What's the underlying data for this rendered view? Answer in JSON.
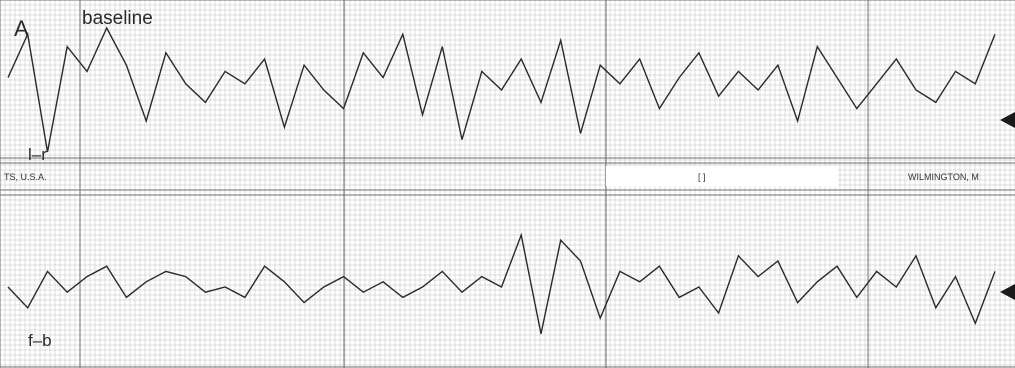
{
  "chart_data": {
    "type": "line",
    "panel_label": "A",
    "title": "baseline",
    "band_texts": {
      "left": "TS, U.S.A.",
      "center": "[ ]",
      "right": "WILMINGTON, M"
    },
    "series": [
      {
        "name": "l–r",
        "x": [
          0,
          2,
          4,
          6,
          8,
          10,
          12,
          14,
          16,
          18,
          20,
          22,
          24,
          26,
          28,
          30,
          32,
          34,
          36,
          38,
          40,
          42,
          44,
          46,
          48,
          50,
          52,
          54,
          56,
          58,
          60,
          62,
          64,
          66,
          68,
          70,
          72,
          74,
          76,
          78,
          80,
          82,
          84,
          86,
          88,
          90,
          92,
          94,
          96,
          98,
          100
        ],
        "y": [
          0.2,
          0.9,
          -1.0,
          0.7,
          0.3,
          1.0,
          0.4,
          -0.5,
          0.6,
          0.1,
          -0.2,
          0.3,
          0.1,
          0.5,
          -0.6,
          0.4,
          0.0,
          -0.3,
          0.6,
          0.2,
          0.9,
          -0.4,
          0.7,
          -0.8,
          0.3,
          0.0,
          0.5,
          -0.2,
          0.8,
          -0.7,
          0.4,
          0.1,
          0.5,
          -0.3,
          0.2,
          0.6,
          -0.1,
          0.3,
          0.0,
          0.4,
          -0.5,
          0.7,
          0.2,
          -0.3,
          0.1,
          0.5,
          0.0,
          -0.2,
          0.3,
          0.1,
          0.9
        ]
      },
      {
        "name": "f–b",
        "x": [
          0,
          2,
          4,
          6,
          8,
          10,
          12,
          14,
          16,
          18,
          20,
          22,
          24,
          26,
          28,
          30,
          32,
          34,
          36,
          38,
          40,
          42,
          44,
          46,
          48,
          50,
          52,
          54,
          56,
          58,
          60,
          62,
          64,
          66,
          68,
          70,
          72,
          74,
          76,
          78,
          80,
          82,
          84,
          86,
          88,
          90,
          92,
          94,
          96,
          98,
          100
        ],
        "y": [
          0.0,
          -0.4,
          0.3,
          -0.1,
          0.2,
          0.4,
          -0.2,
          0.1,
          0.3,
          0.2,
          -0.1,
          0.0,
          -0.2,
          0.4,
          0.1,
          -0.3,
          0.0,
          0.2,
          -0.1,
          0.1,
          -0.2,
          0.0,
          0.3,
          -0.1,
          0.2,
          0.0,
          1.0,
          -0.9,
          0.9,
          0.5,
          -0.6,
          0.3,
          0.1,
          0.4,
          -0.2,
          0.0,
          -0.5,
          0.6,
          0.2,
          0.5,
          -0.3,
          0.1,
          0.4,
          -0.2,
          0.3,
          0.0,
          0.6,
          -0.4,
          0.2,
          -0.7,
          0.3
        ]
      }
    ],
    "xlabel": "",
    "ylabel": "",
    "xlim": [
      0,
      100
    ],
    "ylim": [
      -1,
      1
    ],
    "grid": true,
    "legend": "none",
    "colors": {
      "paper": "#ffffff",
      "grid_minor": "#b8b8b8",
      "grid_major": "#6e6e6e",
      "trace": "#2a2a2a"
    }
  }
}
